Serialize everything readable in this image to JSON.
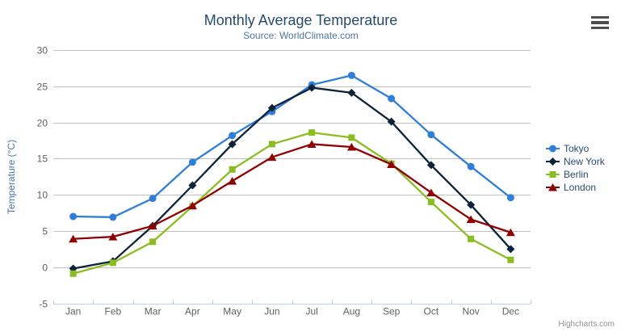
{
  "chart_data": {
    "type": "line",
    "title": "Monthly Average Temperature",
    "subtitle": "Source: WorldClimate.com",
    "ylabel": "Temperature (°C)",
    "xlabel": "",
    "ylim": [
      -5,
      30
    ],
    "ytick_step": 5,
    "grid": true,
    "legend_position": "right",
    "categories": [
      "Jan",
      "Feb",
      "Mar",
      "Apr",
      "May",
      "Jun",
      "Jul",
      "Aug",
      "Sep",
      "Oct",
      "Nov",
      "Dec"
    ],
    "series": [
      {
        "name": "Tokyo",
        "color": "#2f7ed8",
        "marker": "circle",
        "values": [
          7.0,
          6.9,
          9.5,
          14.5,
          18.2,
          21.5,
          25.2,
          26.5,
          23.3,
          18.3,
          13.9,
          9.6
        ]
      },
      {
        "name": "New York",
        "color": "#0d233a",
        "marker": "diamond",
        "values": [
          -0.2,
          0.8,
          5.7,
          11.3,
          17.0,
          22.0,
          24.8,
          24.1,
          20.1,
          14.1,
          8.6,
          2.5
        ]
      },
      {
        "name": "Berlin",
        "color": "#8bbc21",
        "marker": "square",
        "values": [
          -0.9,
          0.6,
          3.5,
          8.4,
          13.5,
          17.0,
          18.6,
          17.9,
          14.3,
          9.0,
          3.9,
          1.0
        ]
      },
      {
        "name": "London",
        "color": "#910000",
        "marker": "triangle",
        "values": [
          3.9,
          4.2,
          5.7,
          8.5,
          11.9,
          15.2,
          17.0,
          16.6,
          14.2,
          10.3,
          6.6,
          4.8
        ]
      }
    ],
    "credits": "Highcharts.com"
  },
  "palette": {
    "title": "#274b6d",
    "subtitle": "#4d759e",
    "axis_title": "#4d759e",
    "axis_labels": "#606060",
    "grid_line": "#C0C0C0",
    "axis_line": "#C0D0E0",
    "credits": "#909090",
    "menu_icon": "#4d4d4d",
    "background": "#ffffff"
  },
  "header": {
    "menu_icon": "hamburger-icon"
  }
}
